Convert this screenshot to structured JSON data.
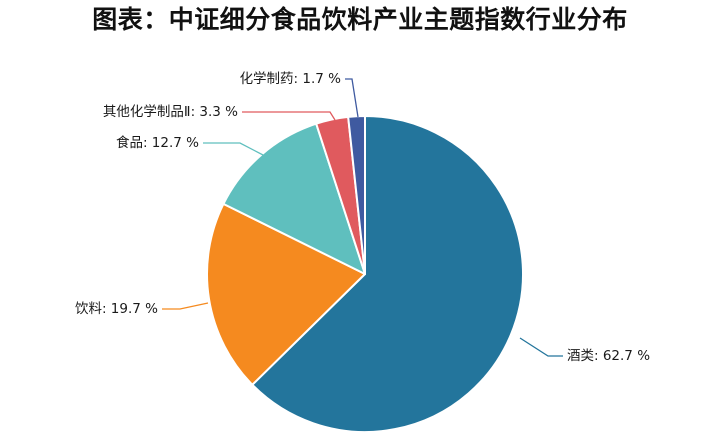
{
  "chart_data": {
    "type": "pie",
    "title": "图表：中证细分食品饮料产业主题指数行业分布",
    "start_angle_deg": 0,
    "direction": "clockwise",
    "slices": [
      {
        "label": "酒类: 62.7 %",
        "name": "酒类",
        "value": 62.7,
        "color": "#23759c"
      },
      {
        "label": "饮料: 19.7 %",
        "name": "饮料",
        "value": 19.7,
        "color": "#f58a1f"
      },
      {
        "label": "食品: 12.7 %",
        "name": "食品",
        "value": 12.7,
        "color": "#5fbfbe"
      },
      {
        "label": "其他化学制品Ⅱ: 3.3 %",
        "name": "其他化学制品Ⅱ",
        "value": 3.3,
        "color": "#e05a5e"
      },
      {
        "label": "化学制药: 1.7 %",
        "name": "化学制药",
        "value": 1.7,
        "color": "#3f5aa0"
      }
    ]
  }
}
